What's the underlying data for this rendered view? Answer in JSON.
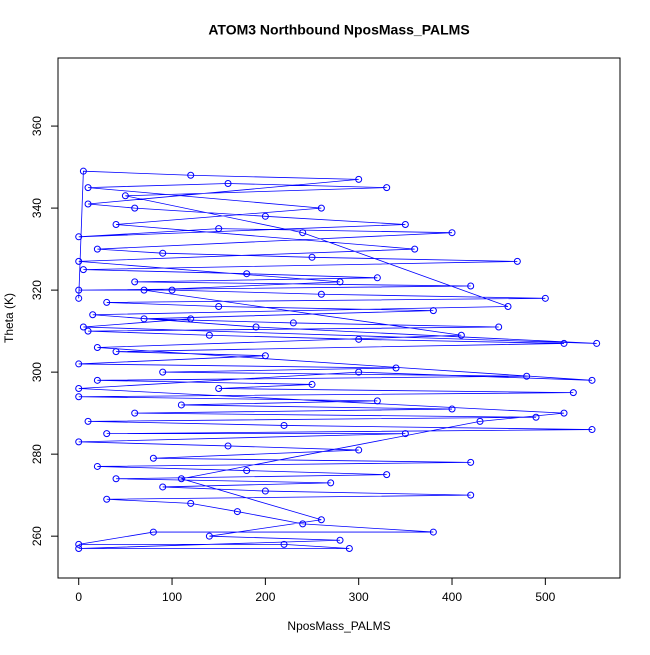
{
  "chart_data": {
    "type": "line",
    "markers": true,
    "title": "ATOM3 Northbound NposMass_PALMS",
    "x_label": "NposMass_PALMS",
    "y_label": "Theta (K)",
    "color": "#0000ff",
    "xlim": [
      -22.2,
      580
    ],
    "ylim": [
      249.8,
      376.6
    ],
    "xticks": [
      0,
      100,
      200,
      300,
      400,
      500
    ],
    "yticks": [
      260,
      280,
      300,
      320,
      340,
      360
    ],
    "x": [
      0,
      5,
      120,
      300,
      10,
      60,
      200,
      350,
      0,
      150,
      400,
      20,
      90,
      250,
      470,
      5,
      180,
      320,
      60,
      420,
      0,
      100,
      260,
      500,
      30,
      150,
      380,
      70,
      230,
      450,
      10,
      140,
      300,
      520,
      40,
      200,
      0,
      340,
      90,
      480,
      20,
      250,
      150,
      530,
      0,
      320,
      110,
      400,
      60,
      490,
      10,
      220,
      550,
      30,
      350,
      0,
      160,
      300,
      80,
      420,
      20,
      180,
      330,
      40,
      270,
      90,
      200,
      420,
      30,
      120,
      170,
      240,
      380,
      80,
      0,
      220,
      290,
      0,
      280,
      140,
      260,
      110,
      430,
      520,
      0,
      300,
      550,
      20,
      410,
      70,
      280,
      0,
      360,
      40,
      260,
      10,
      160,
      330,
      50,
      240,
      460,
      15,
      190,
      555,
      5,
      120
    ],
    "values": [
      318,
      349,
      348,
      347,
      341,
      340,
      338,
      336,
      333,
      335,
      334,
      330,
      329,
      328,
      327,
      325,
      324,
      323,
      322,
      321,
      320,
      320,
      319,
      318,
      317,
      316,
      315,
      313,
      312,
      311,
      310,
      309,
      308,
      307,
      305,
      304,
      302,
      301,
      300,
      299,
      298,
      297,
      296,
      295,
      294,
      293,
      292,
      291,
      290,
      289,
      288,
      287,
      286,
      285,
      285,
      283,
      282,
      281,
      279,
      278,
      277,
      276,
      275,
      274,
      273,
      272,
      271,
      270,
      269,
      268,
      266,
      263,
      261,
      261,
      258,
      258,
      257,
      257,
      259,
      260,
      264,
      274,
      288,
      290,
      296,
      300,
      298,
      306,
      309,
      320,
      322,
      327,
      330,
      336,
      340,
      345,
      346,
      345,
      343,
      334,
      316,
      314,
      311,
      307,
      311,
      313
    ]
  }
}
